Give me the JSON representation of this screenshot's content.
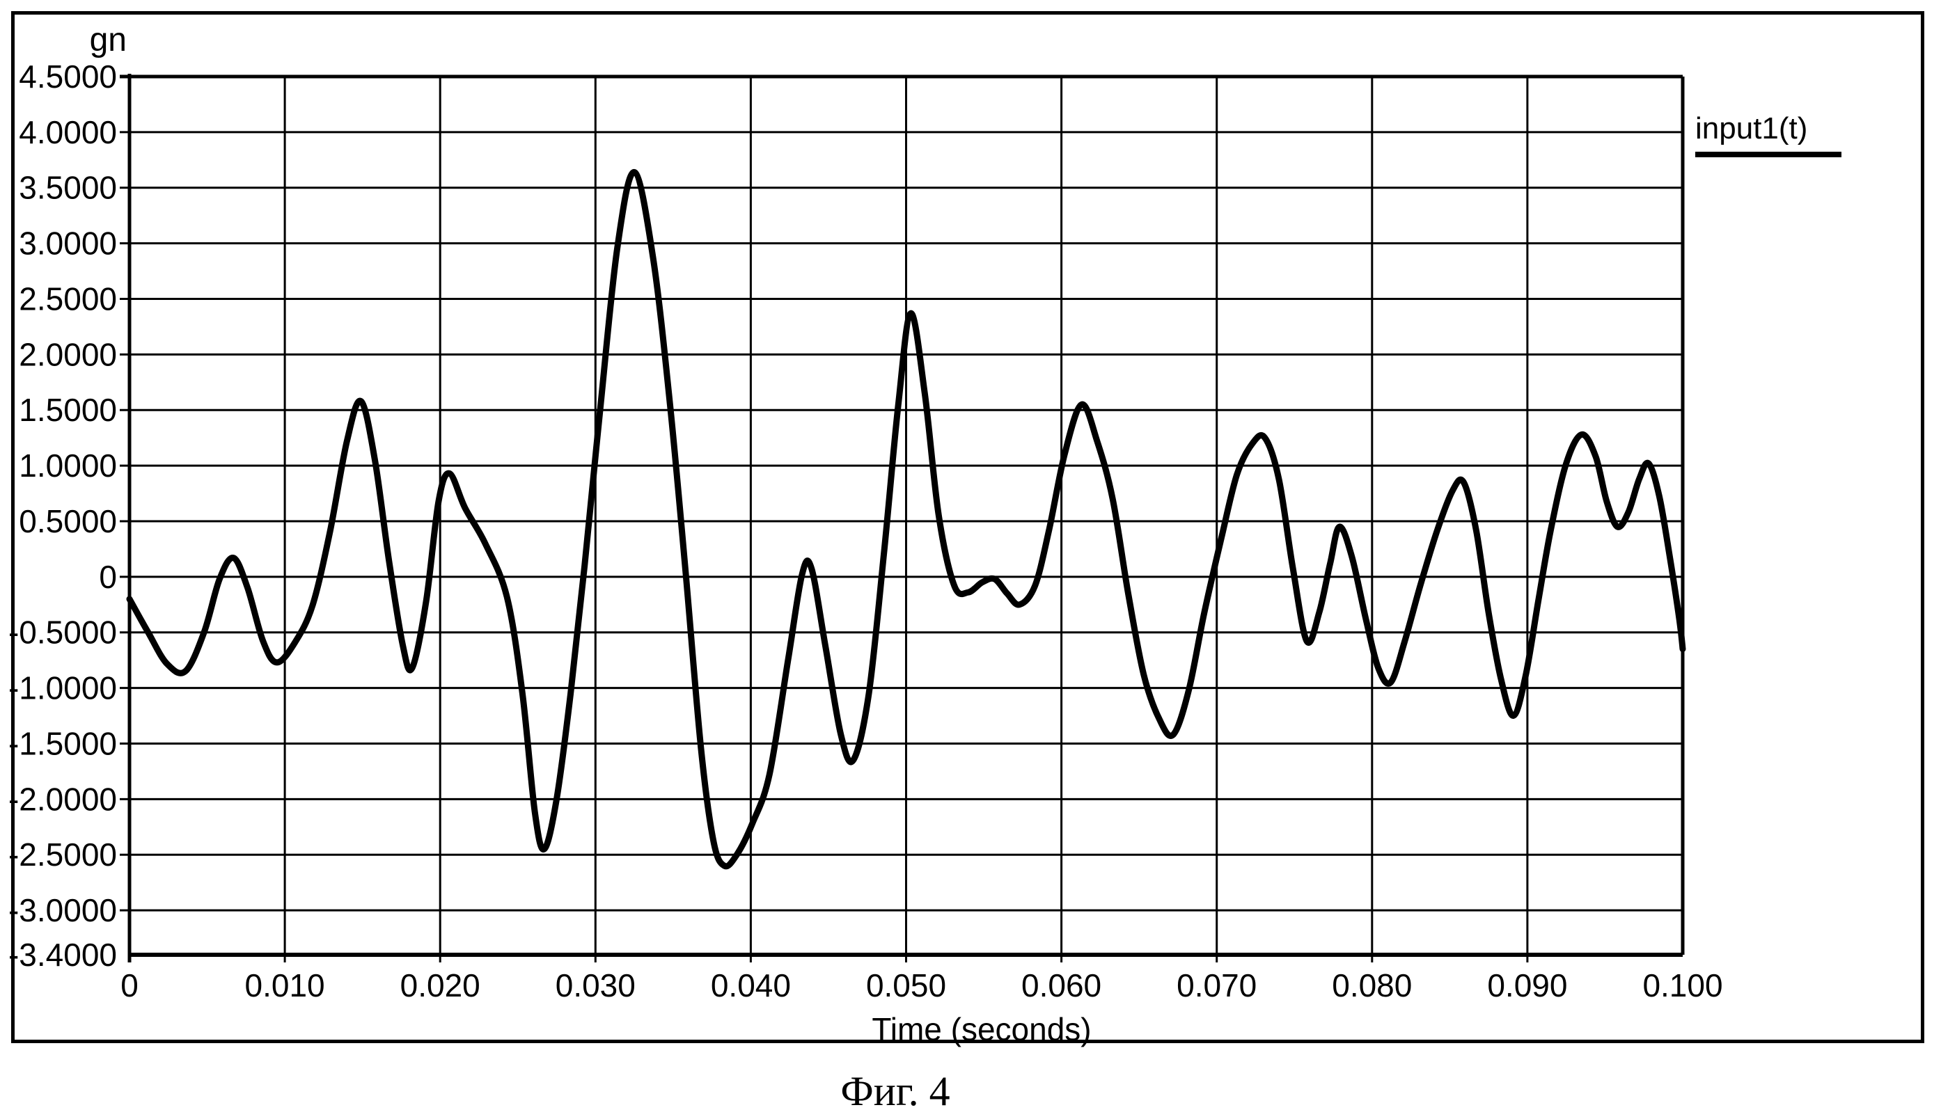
{
  "page": {
    "background": "#ffffff"
  },
  "caption": "Фиг. 4",
  "chart_data": {
    "type": "line",
    "title": "",
    "y_axis_title": "gn",
    "x_axis_title": "Time (seconds)",
    "legend": {
      "label": "input1(t)",
      "position": "top-right"
    },
    "colors": {
      "line": "#000000",
      "grid": "#000000",
      "background": "#ffffff",
      "text": "#000000"
    },
    "grid": true,
    "x_range": [
      0,
      0.1
    ],
    "y_range": [
      -3.4,
      4.5
    ],
    "x_ticks": [
      {
        "value": 0.0,
        "label": "0"
      },
      {
        "value": 0.01,
        "label": "0.010"
      },
      {
        "value": 0.02,
        "label": "0.020"
      },
      {
        "value": 0.03,
        "label": "0.030"
      },
      {
        "value": 0.04,
        "label": "0.040"
      },
      {
        "value": 0.05,
        "label": "0.050"
      },
      {
        "value": 0.06,
        "label": "0.060"
      },
      {
        "value": 0.07,
        "label": "0.070"
      },
      {
        "value": 0.08,
        "label": "0.080"
      },
      {
        "value": 0.09,
        "label": "0.090"
      },
      {
        "value": 0.1,
        "label": "0.100"
      }
    ],
    "y_ticks": [
      {
        "value": 4.5,
        "label": "4.5000"
      },
      {
        "value": 4.0,
        "label": "4.0000"
      },
      {
        "value": 3.5,
        "label": "3.5000"
      },
      {
        "value": 3.0,
        "label": "3.0000"
      },
      {
        "value": 2.5,
        "label": "2.5000"
      },
      {
        "value": 2.0,
        "label": "2.0000"
      },
      {
        "value": 1.5,
        "label": "1.5000"
      },
      {
        "value": 1.0,
        "label": "1.0000"
      },
      {
        "value": 0.5,
        "label": "0.5000"
      },
      {
        "value": 0.0,
        "label": "0"
      },
      {
        "value": -0.5,
        "label": "-0.5000"
      },
      {
        "value": -1.0,
        "label": "-1.0000"
      },
      {
        "value": -1.5,
        "label": "-1.5000"
      },
      {
        "value": -2.0,
        "label": "-2.0000"
      },
      {
        "value": -2.5,
        "label": "-2.5000"
      },
      {
        "value": -3.0,
        "label": "-3.0000"
      },
      {
        "value": -3.4,
        "label": "-3.4000"
      }
    ],
    "series": [
      {
        "name": "input1(t)",
        "points": [
          [
            0.0,
            -0.2
          ],
          [
            0.0012,
            -0.5
          ],
          [
            0.0024,
            -0.78
          ],
          [
            0.0036,
            -0.85
          ],
          [
            0.0048,
            -0.5
          ],
          [
            0.0058,
            -0.02
          ],
          [
            0.0067,
            0.17
          ],
          [
            0.0076,
            -0.1
          ],
          [
            0.0086,
            -0.58
          ],
          [
            0.0095,
            -0.77
          ],
          [
            0.0107,
            -0.58
          ],
          [
            0.0118,
            -0.25
          ],
          [
            0.0129,
            0.4
          ],
          [
            0.014,
            1.22
          ],
          [
            0.0149,
            1.58
          ],
          [
            0.0158,
            1.05
          ],
          [
            0.0167,
            0.15
          ],
          [
            0.0176,
            -0.62
          ],
          [
            0.0182,
            -0.82
          ],
          [
            0.0191,
            -0.22
          ],
          [
            0.0199,
            0.68
          ],
          [
            0.0206,
            0.93
          ],
          [
            0.0216,
            0.62
          ],
          [
            0.0229,
            0.3
          ],
          [
            0.0243,
            -0.18
          ],
          [
            0.0253,
            -1.05
          ],
          [
            0.0261,
            -2.12
          ],
          [
            0.0267,
            -2.45
          ],
          [
            0.0275,
            -2.0
          ],
          [
            0.0284,
            -1.05
          ],
          [
            0.0293,
            0.1
          ],
          [
            0.0303,
            1.5
          ],
          [
            0.0314,
            2.95
          ],
          [
            0.0325,
            3.64
          ],
          [
            0.0337,
            2.88
          ],
          [
            0.0348,
            1.55
          ],
          [
            0.0358,
            0.05
          ],
          [
            0.0368,
            -1.55
          ],
          [
            0.0376,
            -2.38
          ],
          [
            0.0383,
            -2.6
          ],
          [
            0.0391,
            -2.5
          ],
          [
            0.0401,
            -2.22
          ],
          [
            0.0412,
            -1.78
          ],
          [
            0.0424,
            -0.75
          ],
          [
            0.0433,
            0.02
          ],
          [
            0.0439,
            0.08
          ],
          [
            0.0448,
            -0.62
          ],
          [
            0.0458,
            -1.42
          ],
          [
            0.0466,
            -1.65
          ],
          [
            0.0476,
            -1.05
          ],
          [
            0.0486,
            0.25
          ],
          [
            0.0495,
            1.55
          ],
          [
            0.0503,
            2.37
          ],
          [
            0.0512,
            1.65
          ],
          [
            0.0521,
            0.55
          ],
          [
            0.0531,
            -0.08
          ],
          [
            0.054,
            -0.14
          ],
          [
            0.0549,
            -0.05
          ],
          [
            0.0557,
            -0.02
          ],
          [
            0.0565,
            -0.15
          ],
          [
            0.0573,
            -0.25
          ],
          [
            0.0583,
            -0.08
          ],
          [
            0.0592,
            0.42
          ],
          [
            0.0602,
            1.1
          ],
          [
            0.0613,
            1.55
          ],
          [
            0.0623,
            1.22
          ],
          [
            0.0633,
            0.7
          ],
          [
            0.0643,
            -0.15
          ],
          [
            0.0653,
            -0.88
          ],
          [
            0.0663,
            -1.28
          ],
          [
            0.0672,
            -1.42
          ],
          [
            0.0682,
            -1.02
          ],
          [
            0.0692,
            -0.32
          ],
          [
            0.0703,
            0.35
          ],
          [
            0.0713,
            0.92
          ],
          [
            0.0723,
            1.2
          ],
          [
            0.0731,
            1.25
          ],
          [
            0.074,
            0.88
          ],
          [
            0.0749,
            0.08
          ],
          [
            0.0758,
            -0.58
          ],
          [
            0.0766,
            -0.32
          ],
          [
            0.0773,
            0.12
          ],
          [
            0.0779,
            0.45
          ],
          [
            0.0787,
            0.18
          ],
          [
            0.0796,
            -0.38
          ],
          [
            0.0804,
            -0.82
          ],
          [
            0.0812,
            -0.95
          ],
          [
            0.0821,
            -0.58
          ],
          [
            0.0831,
            -0.08
          ],
          [
            0.0842,
            0.42
          ],
          [
            0.0852,
            0.78
          ],
          [
            0.0859,
            0.85
          ],
          [
            0.0867,
            0.42
          ],
          [
            0.0875,
            -0.32
          ],
          [
            0.0883,
            -0.92
          ],
          [
            0.0891,
            -1.25
          ],
          [
            0.0899,
            -0.88
          ],
          [
            0.0907,
            -0.22
          ],
          [
            0.0915,
            0.42
          ],
          [
            0.0925,
            1.02
          ],
          [
            0.0935,
            1.28
          ],
          [
            0.0944,
            1.08
          ],
          [
            0.0951,
            0.68
          ],
          [
            0.0958,
            0.45
          ],
          [
            0.0965,
            0.58
          ],
          [
            0.0972,
            0.88
          ],
          [
            0.0978,
            1.02
          ],
          [
            0.0985,
            0.72
          ],
          [
            0.0992,
            0.15
          ],
          [
            0.0998,
            -0.4
          ],
          [
            0.1,
            -0.65
          ]
        ]
      }
    ]
  }
}
